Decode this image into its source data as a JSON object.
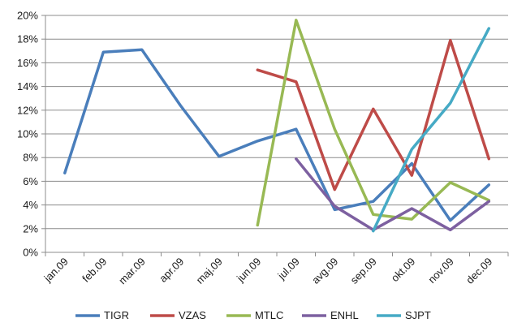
{
  "chart_data": {
    "type": "line",
    "title": "",
    "xlabel": "",
    "ylabel": "",
    "categories": [
      "jan.09",
      "feb.09",
      "mar.09",
      "apr.09",
      "maj.09",
      "jun.09",
      "jul.09",
      "avg.09",
      "sep.09",
      "okt.09",
      "nov.09",
      "dec.09"
    ],
    "y_ticks": [
      "0%",
      "2%",
      "4%",
      "6%",
      "8%",
      "10%",
      "12%",
      "14%",
      "16%",
      "18%",
      "20%"
    ],
    "ylim": [
      0,
      20
    ],
    "y_unit": "percent",
    "grid": "horizontal major gridlines",
    "legend_position": "bottom",
    "series": [
      {
        "name": "TIGR",
        "color": "#4a7ebb",
        "values": [
          6.7,
          16.9,
          17.1,
          12.4,
          8.1,
          9.4,
          10.4,
          3.6,
          4.3,
          7.5,
          2.7,
          5.7
        ]
      },
      {
        "name": "VZAS",
        "color": "#be4b48",
        "values": [
          null,
          null,
          null,
          null,
          null,
          15.4,
          14.4,
          5.3,
          12.1,
          6.5,
          17.9,
          7.9
        ]
      },
      {
        "name": "MTLC",
        "color": "#98b954",
        "values": [
          null,
          null,
          null,
          null,
          null,
          2.3,
          19.6,
          10.4,
          3.2,
          2.8,
          5.9,
          4.4
        ]
      },
      {
        "name": "ENHL",
        "color": "#7d60a0",
        "values": [
          null,
          null,
          null,
          null,
          null,
          null,
          7.9,
          3.9,
          1.9,
          3.7,
          1.9,
          4.3
        ]
      },
      {
        "name": "SJPT",
        "color": "#46aac5",
        "values": [
          null,
          null,
          null,
          null,
          null,
          null,
          null,
          null,
          1.8,
          8.7,
          12.6,
          18.9
        ]
      }
    ]
  }
}
